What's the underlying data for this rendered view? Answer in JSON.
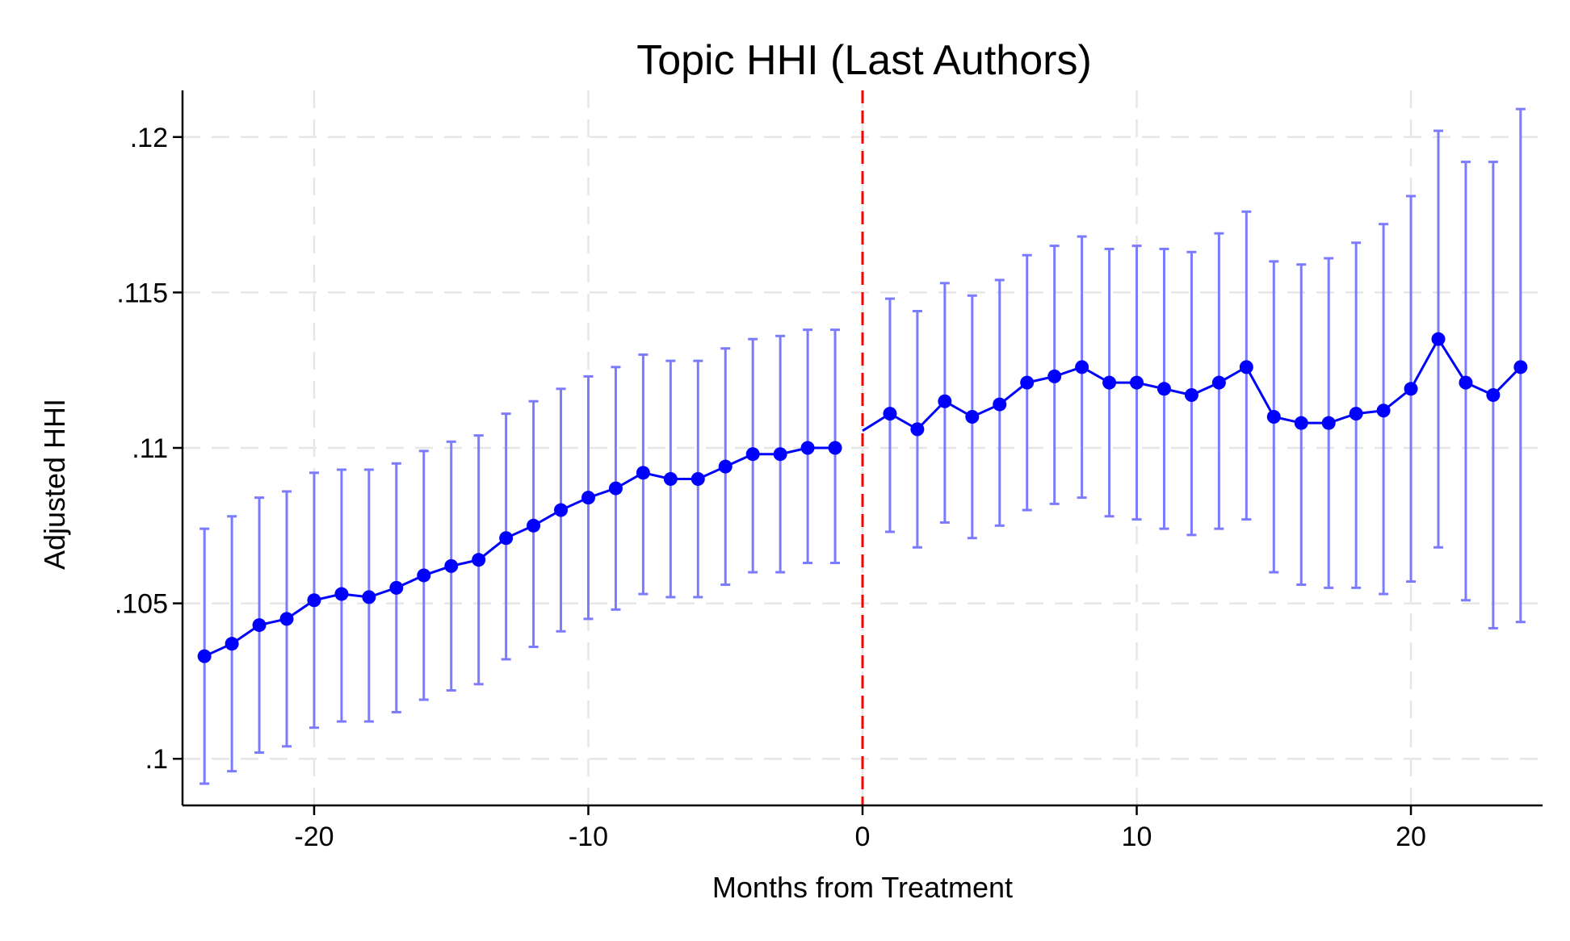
{
  "chart_data": {
    "type": "line",
    "title": "Topic HHI (Last Authors)",
    "xlabel": "Months from Treatment",
    "ylabel": "Adjusted HHI",
    "xlim": [
      -24.8,
      24.8
    ],
    "ylim": [
      0.0985,
      0.1215
    ],
    "xticks": [
      -20,
      -10,
      0,
      10,
      20
    ],
    "xtick_labels": [
      "-20",
      "-10",
      "0",
      "10",
      "20"
    ],
    "yticks": [
      0.1,
      0.105,
      0.11,
      0.115,
      0.12
    ],
    "ytick_labels": [
      ".1",
      ".105",
      ".11",
      ".115",
      ".12"
    ],
    "grid": true,
    "reference_line": {
      "x": 0,
      "style": "dashed",
      "color": "#ff0000"
    },
    "colors": {
      "series": "#0000ff",
      "error_bars": "#7b7bff",
      "grid": "#e6e6e6",
      "axis": "#000000"
    },
    "series": [
      {
        "x": [
          -24,
          -23,
          -22,
          -21,
          -20,
          -19,
          -18,
          -17,
          -16,
          -15,
          -14,
          -13,
          -12,
          -11,
          -10,
          -9,
          -8,
          -7,
          -6,
          -5,
          -4,
          -3,
          -2,
          -1,
          1,
          2,
          3,
          4,
          5,
          6,
          7,
          8,
          9,
          10,
          11,
          12,
          13,
          14,
          15,
          16,
          17,
          18,
          19,
          20,
          21,
          22,
          23,
          24
        ],
        "y": [
          0.1033,
          0.1037,
          0.1043,
          0.1045,
          0.1051,
          0.1053,
          0.1052,
          0.1055,
          0.1059,
          0.1062,
          0.1064,
          0.1071,
          0.1075,
          0.108,
          0.1084,
          0.1087,
          0.1092,
          0.109,
          0.109,
          0.1094,
          0.1098,
          0.1098,
          0.11,
          0.11,
          0.1111,
          0.1106,
          0.1115,
          0.111,
          0.1114,
          0.1121,
          0.1123,
          0.1126,
          0.1121,
          0.1121,
          0.1119,
          0.1117,
          0.1121,
          0.1126,
          0.111,
          0.1108,
          0.1108,
          0.1111,
          0.1112,
          0.1119,
          0.1135,
          0.1121,
          0.1117,
          0.1126
        ],
        "lower": [
          0.0992,
          0.0996,
          0.1002,
          0.1004,
          0.101,
          0.1012,
          0.1012,
          0.1015,
          0.1019,
          0.1022,
          0.1024,
          0.1032,
          0.1036,
          0.1041,
          0.1045,
          0.1048,
          0.1053,
          0.1052,
          0.1052,
          0.1056,
          0.106,
          0.106,
          0.1063,
          0.1063,
          0.1073,
          0.1068,
          0.1076,
          0.1071,
          0.1075,
          0.108,
          0.1082,
          0.1084,
          0.1078,
          0.1077,
          0.1074,
          0.1072,
          0.1074,
          0.1077,
          0.106,
          0.1056,
          0.1055,
          0.1055,
          0.1053,
          0.1057,
          0.1068,
          0.1051,
          0.1042,
          0.1044
        ],
        "upper": [
          0.1074,
          0.1078,
          0.1084,
          0.1086,
          0.1092,
          0.1093,
          0.1093,
          0.1095,
          0.1099,
          0.1102,
          0.1104,
          0.1111,
          0.1115,
          0.1119,
          0.1123,
          0.1126,
          0.113,
          0.1128,
          0.1128,
          0.1132,
          0.1135,
          0.1136,
          0.1138,
          0.1138,
          0.1148,
          0.1144,
          0.1153,
          0.1149,
          0.1154,
          0.1162,
          0.1165,
          0.1168,
          0.1164,
          0.1165,
          0.1164,
          0.1163,
          0.1169,
          0.1176,
          0.116,
          0.1159,
          0.1161,
          0.1166,
          0.1172,
          0.1181,
          0.1202,
          0.1192,
          0.1192,
          0.1209
        ],
        "segment_break_after_x": -1,
        "connect_to_zero_value": 0.11055
      }
    ]
  }
}
